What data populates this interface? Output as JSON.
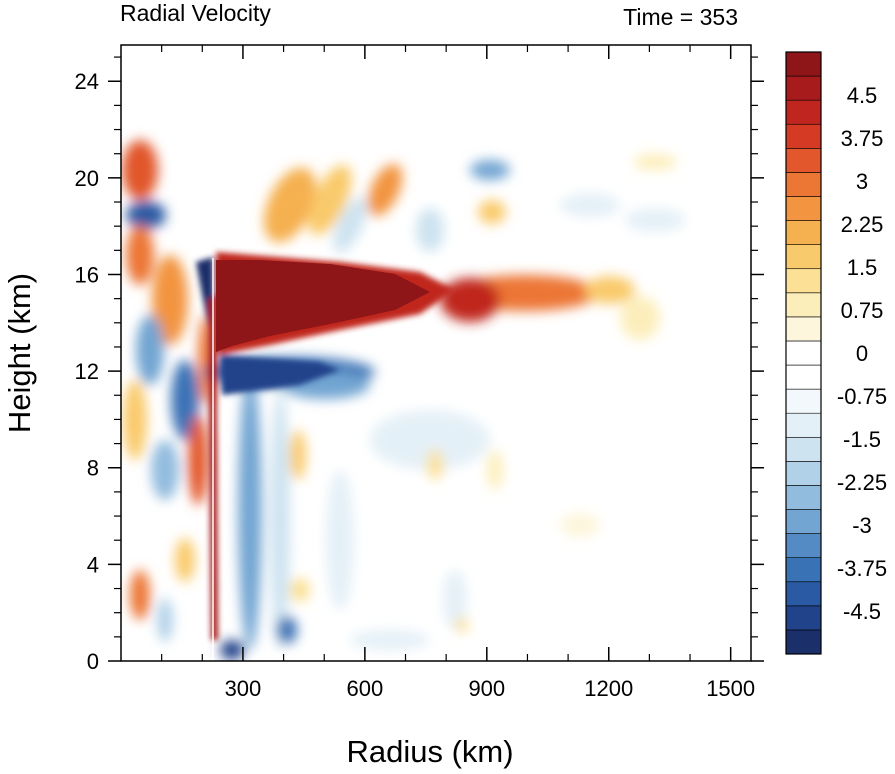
{
  "chart_data": {
    "type": "heatmap",
    "title": "Radial Velocity",
    "subtitle": "Time = 353",
    "xlabel": "Radius (km)",
    "ylabel": "Height (km)",
    "xlim": [
      0,
      1550
    ],
    "ylim": [
      0,
      25.5
    ],
    "x_ticks": [
      300,
      600,
      900,
      1200,
      1500
    ],
    "y_ticks": [
      0,
      4,
      8,
      12,
      16,
      20,
      24
    ],
    "colorbar": {
      "range": [
        -5.25,
        5.25
      ],
      "step": 0.375,
      "labels": [
        "4.5",
        "3.75",
        "3",
        "2.25",
        "1.5",
        "0.75",
        "0",
        "-0.75",
        "-1.5",
        "-2.25",
        "-3",
        "-3.75",
        "-4.5"
      ],
      "label_values": [
        4.5,
        3.75,
        3,
        2.25,
        1.5,
        0.75,
        0,
        -0.75,
        -1.5,
        -2.25,
        -3,
        -3.75,
        -4.5
      ],
      "colors": [
        "#1b2f6b",
        "#21438a",
        "#2a5aa3",
        "#3a72b6",
        "#558bc5",
        "#72a5d2",
        "#92bcde",
        "#b1d1e8",
        "#cde3f0",
        "#e4f0f7",
        "#f2f8fb",
        "#ffffff",
        "#ffffff",
        "#fdf6dc",
        "#fceebb",
        "#fbe095",
        "#f9ca6c",
        "#f5b04f",
        "#f29440",
        "#ec7634",
        "#e2572b",
        "#d43a24",
        "#c0261f",
        "#a71b1c",
        "#8e1518"
      ]
    },
    "features": [
      {
        "name": "upper-level outflow jet",
        "sign": "positive",
        "x_range": [
          230,
          750
        ],
        "z_range": [
          12.8,
          16.5
        ],
        "peak": "> 5.25"
      },
      {
        "name": "outflow extension",
        "sign": "positive",
        "x_range": [
          750,
          1120
        ],
        "z_range": [
          13.8,
          16.3
        ],
        "peak": 4.5
      },
      {
        "name": "inflow below outflow",
        "sign": "negative",
        "x_range": [
          220,
          600
        ],
        "z_range": [
          10.8,
          12.8
        ],
        "peak": -4.5
      },
      {
        "name": "eyewall boundary",
        "x": 225
      }
    ]
  }
}
